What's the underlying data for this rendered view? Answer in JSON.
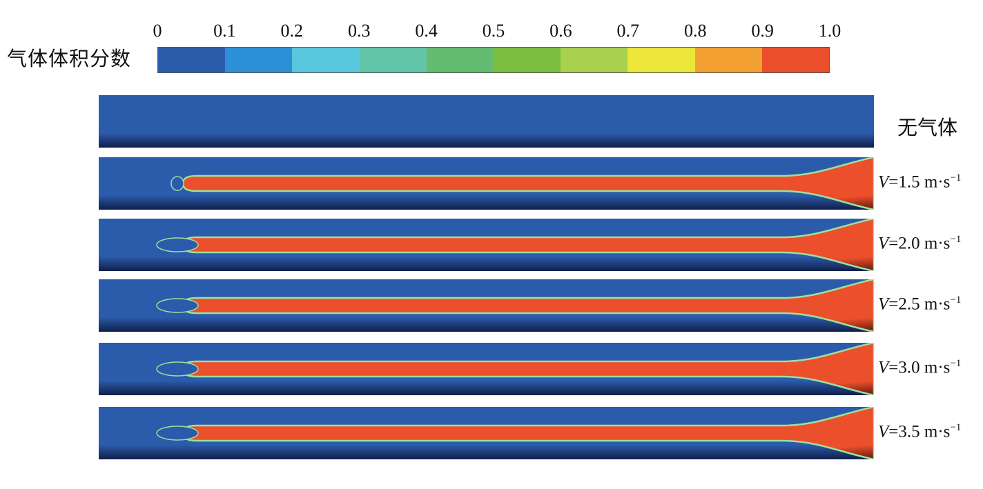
{
  "legend": {
    "title": "气体体积分数",
    "tick_labels": [
      "0",
      "0.1",
      "0.2",
      "0.3",
      "0.4",
      "0.5",
      "0.6",
      "0.7",
      "0.8",
      "0.9",
      "1.0"
    ],
    "colors": [
      "#2b5cab",
      "#2d8fd6",
      "#58c6dc",
      "#62c4a7",
      "#64bc72",
      "#7bbd3f",
      "#a9d04e",
      "#ece63a",
      "#f3a032",
      "#ec4f2c"
    ]
  },
  "colors": {
    "water": "#2b5cab",
    "water_dark": "#101f4a",
    "gas": "#ec4f2c",
    "gas_dark": "#5a1a10",
    "interface": "#9fe09a"
  },
  "panels": [
    {
      "label_type": "text",
      "label": "无气体",
      "has_gas": false
    },
    {
      "label_type": "velocity",
      "var": "V",
      "value": "=1.5 m·s",
      "unit_exp": "−1",
      "has_gas": true,
      "bubble": "small"
    },
    {
      "label_type": "velocity",
      "var": "V",
      "value": "=2.0 m·s",
      "unit_exp": "−1",
      "has_gas": true,
      "bubble": "large"
    },
    {
      "label_type": "velocity",
      "var": "V",
      "value": "=2.5 m·s",
      "unit_exp": "−1",
      "has_gas": true,
      "bubble": "large"
    },
    {
      "label_type": "velocity",
      "var": "V",
      "value": "=3.0 m·s",
      "unit_exp": "−1",
      "has_gas": true,
      "bubble": "large"
    },
    {
      "label_type": "velocity",
      "var": "V",
      "value": "=3.5 m·s",
      "unit_exp": "−1",
      "has_gas": true,
      "bubble": "large"
    }
  ]
}
